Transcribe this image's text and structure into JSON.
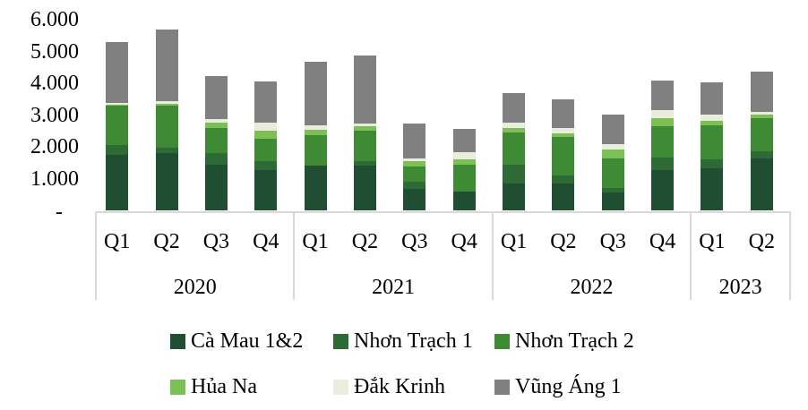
{
  "chart_data": {
    "type": "bar",
    "stacked": true,
    "title": "",
    "xlabel": "",
    "ylabel": "",
    "ylim": [
      0,
      6000
    ],
    "yticks": [
      "-",
      "1.000",
      "2.000",
      "3.000",
      "4.000",
      "5.000",
      "6.000"
    ],
    "ytick_values": [
      0,
      1000,
      2000,
      3000,
      4000,
      5000,
      6000
    ],
    "grid": false,
    "legend_position": "bottom",
    "groups": [
      {
        "year": "2020",
        "quarters": [
          "Q1",
          "Q2",
          "Q3",
          "Q4"
        ]
      },
      {
        "year": "2021",
        "quarters": [
          "Q1",
          "Q2",
          "Q3",
          "Q4"
        ]
      },
      {
        "year": "2022",
        "quarters": [
          "Q1",
          "Q2",
          "Q3",
          "Q4"
        ]
      },
      {
        "year": "2023",
        "quarters": [
          "Q1",
          "Q2"
        ]
      }
    ],
    "categories": [
      "2020 Q1",
      "2020 Q2",
      "2020 Q3",
      "2020 Q4",
      "2021 Q1",
      "2021 Q2",
      "2021 Q3",
      "2021 Q4",
      "2022 Q1",
      "2022 Q2",
      "2022 Q3",
      "2022 Q4",
      "2023 Q1",
      "2023 Q2"
    ],
    "series": [
      {
        "name": "Cà Mau 1&2",
        "color": "#1f4e33",
        "values": [
          1750,
          1800,
          1440,
          1270,
          1410,
          1410,
          680,
          590,
          850,
          850,
          560,
          1270,
          1320,
          1630
        ]
      },
      {
        "name": "Nhơn Trạch 1",
        "color": "#2d6a35",
        "values": [
          310,
          170,
          370,
          280,
          0,
          140,
          230,
          0,
          590,
          250,
          140,
          390,
          280,
          230
        ]
      },
      {
        "name": "Nhơn Trạch 2",
        "color": "#3f8a35",
        "values": [
          1240,
          1320,
          790,
          700,
          960,
          960,
          480,
          850,
          1010,
          1210,
          930,
          990,
          1070,
          1040
        ]
      },
      {
        "name": "Hủa Na",
        "color": "#7bbf55",
        "values": [
          30,
          60,
          170,
          250,
          170,
          140,
          170,
          170,
          140,
          110,
          280,
          250,
          140,
          110
        ]
      },
      {
        "name": "Đắk Krinh",
        "color": "#e8eddd",
        "values": [
          60,
          80,
          110,
          250,
          140,
          80,
          80,
          230,
          170,
          170,
          170,
          250,
          200,
          80
        ]
      },
      {
        "name": "Vũng Áng 1",
        "color": "#808080",
        "values": [
          1920,
          2250,
          1350,
          1320,
          2000,
          2140,
          1100,
          710,
          930,
          900,
          930,
          930,
          1010,
          1270
        ]
      }
    ]
  },
  "legend": {
    "items": [
      {
        "label": "Cà Mau 1&2",
        "color": "#1f4e33"
      },
      {
        "label": "Nhơn Trạch 1",
        "color": "#2d6a35"
      },
      {
        "label": "Nhơn Trạch 2",
        "color": "#3f8a35"
      },
      {
        "label": "Hủa Na",
        "color": "#7bbf55"
      },
      {
        "label": "Đắk Krinh",
        "color": "#e8eddd"
      },
      {
        "label": "Vũng Áng 1",
        "color": "#808080"
      }
    ]
  }
}
